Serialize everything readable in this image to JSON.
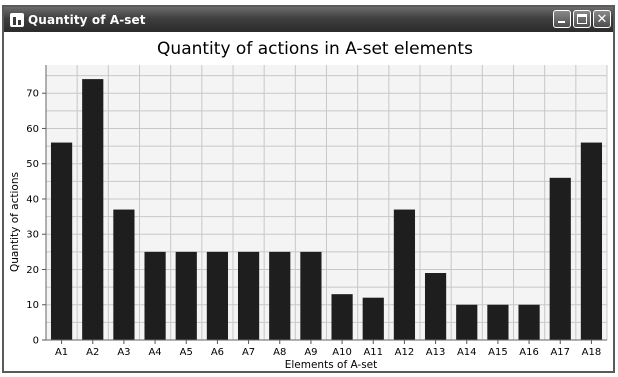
{
  "window": {
    "title": "Quantity of A-set",
    "icon": "bar-chart-icon",
    "controls": [
      "minimize-icon",
      "maximize-icon",
      "close-icon"
    ]
  },
  "chart_data": {
    "type": "bar",
    "title": "Quantity of actions in A-set elements",
    "xlabel": "Elements of A-set",
    "ylabel": "Quantity of actions",
    "categories": [
      "A1",
      "A2",
      "A3",
      "A4",
      "A5",
      "A6",
      "A7",
      "A8",
      "A9",
      "A10",
      "A11",
      "A12",
      "A13",
      "A14",
      "A15",
      "A16",
      "A17",
      "A18"
    ],
    "values": [
      56,
      74,
      37,
      25,
      25,
      25,
      25,
      25,
      25,
      13,
      12,
      37,
      19,
      10,
      10,
      10,
      46,
      56
    ],
    "yticks": [
      0,
      10,
      20,
      30,
      40,
      50,
      60,
      70
    ],
    "ylim": [
      0,
      78
    ],
    "grid": true,
    "colors": {
      "bar": "#1e1e1e",
      "plot_background": "#f4f4f4",
      "grid": "#c8c8c8"
    }
  }
}
